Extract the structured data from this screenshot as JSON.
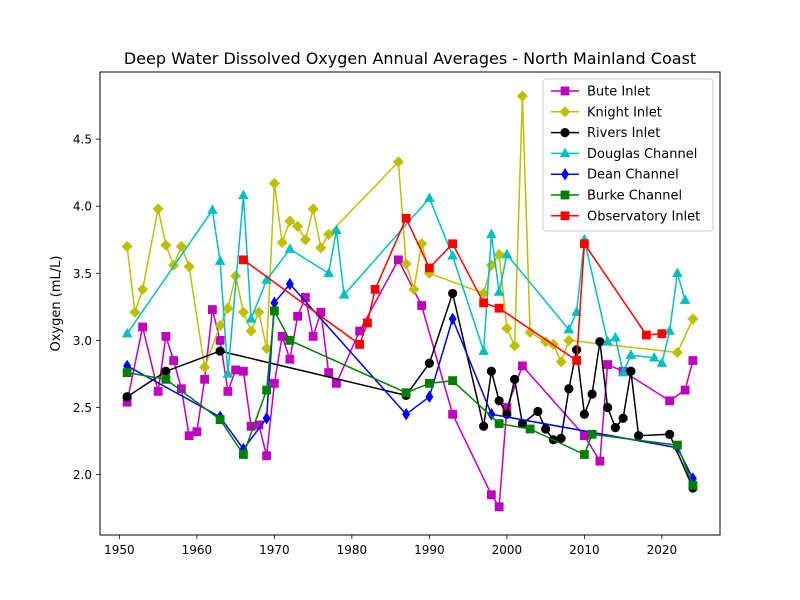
{
  "chart_data": {
    "type": "line",
    "title": "Deep Water Dissolved Oxygen Annual Averages - North Mainland Coast",
    "xlabel": "",
    "ylabel": "Oxygen (mL/L)",
    "xlim": [
      1947.5,
      2027.5
    ],
    "ylim": [
      1.55,
      5.0
    ],
    "xticks": [
      1950,
      1960,
      1970,
      1980,
      1990,
      2000,
      2010,
      2020
    ],
    "yticks": [
      2.0,
      2.5,
      3.0,
      3.5,
      4.0,
      4.5
    ],
    "ytick_labels": [
      "2.0",
      "2.5",
      "3.0",
      "3.5",
      "4.0",
      "4.5"
    ],
    "grid": false,
    "legend_position": "top-right",
    "series": [
      {
        "name": "Bute Inlet",
        "color": "#bf00bf",
        "marker": "square",
        "x": [
          1951,
          1953,
          1955,
          1956,
          1957,
          1958,
          1959,
          1960,
          1961,
          1962,
          1963,
          1964,
          1965,
          1966,
          1967,
          1968,
          1969,
          1970,
          1971,
          1972,
          1973,
          1974,
          1975,
          1976,
          1977,
          1978,
          1981,
          1986,
          1989,
          1993,
          1998,
          1999,
          2000,
          2002,
          2010,
          2012,
          2013,
          2015,
          2021,
          2023,
          2024
        ],
        "y": [
          2.54,
          3.1,
          2.62,
          3.03,
          2.85,
          2.64,
          2.29,
          2.32,
          2.71,
          3.23,
          3.0,
          2.62,
          2.78,
          2.77,
          2.36,
          2.37,
          2.14,
          2.68,
          3.03,
          2.86,
          3.18,
          3.32,
          3.03,
          3.21,
          2.76,
          2.68,
          3.07,
          3.6,
          3.26,
          2.45,
          1.85,
          1.76,
          2.5,
          2.81,
          2.29,
          2.1,
          2.82,
          2.77,
          2.55,
          2.63,
          2.85
        ]
      },
      {
        "name": "Knight Inlet",
        "color": "#bfbf00",
        "marker": "diamond",
        "x": [
          1951,
          1952,
          1953,
          1955,
          1956,
          1957,
          1958,
          1959,
          1961,
          1963,
          1964,
          1965,
          1966,
          1967,
          1968,
          1969,
          1970,
          1971,
          1972,
          1973,
          1974,
          1975,
          1976,
          1977,
          1986,
          1987,
          1988,
          1989,
          1990,
          1997,
          1998,
          1999,
          2000,
          2001,
          2002,
          2003,
          2005,
          2006,
          2007,
          2008,
          2022,
          2024
        ],
        "y": [
          3.7,
          3.21,
          3.38,
          3.98,
          3.71,
          3.56,
          3.7,
          3.55,
          2.8,
          3.11,
          3.24,
          3.48,
          3.21,
          3.07,
          3.21,
          2.94,
          4.17,
          3.73,
          3.89,
          3.85,
          3.75,
          3.98,
          3.69,
          3.79,
          4.33,
          3.57,
          3.38,
          3.72,
          3.5,
          3.35,
          3.56,
          3.64,
          3.09,
          2.96,
          4.82,
          3.06,
          2.99,
          2.97,
          2.84,
          3.0,
          2.91,
          3.16
        ]
      },
      {
        "name": "Rivers Inlet",
        "color": "#000000",
        "marker": "circle",
        "x": [
          1951,
          1956,
          1963,
          1987,
          1990,
          1993,
          1997,
          1998,
          1999,
          2000,
          2001,
          2002,
          2004,
          2005,
          2006,
          2007,
          2008,
          2009,
          2010,
          2011,
          2012,
          2013,
          2014,
          2015,
          2016,
          2017,
          2021,
          2024
        ],
        "y": [
          2.58,
          2.77,
          2.92,
          2.59,
          2.83,
          3.35,
          2.36,
          2.77,
          2.55,
          2.45,
          2.71,
          2.38,
          2.47,
          2.34,
          2.26,
          2.27,
          2.64,
          2.93,
          2.45,
          2.6,
          2.99,
          2.5,
          2.35,
          2.42,
          2.77,
          2.29,
          2.3,
          1.9
        ]
      },
      {
        "name": "Douglas Channel",
        "color": "#00bfbf",
        "marker": "triangle",
        "x": [
          1951,
          1962,
          1963,
          1964,
          1966,
          1967,
          1969,
          1972,
          1977,
          1978,
          1979,
          1990,
          1993,
          1997,
          1998,
          1999,
          2000,
          2008,
          2009,
          2010,
          2013,
          2014,
          2015,
          2016,
          2019,
          2020,
          2021,
          2022,
          2023
        ],
        "y": [
          3.05,
          3.97,
          3.59,
          2.75,
          4.08,
          3.16,
          3.45,
          3.68,
          3.5,
          3.82,
          3.34,
          4.06,
          3.63,
          2.92,
          3.79,
          3.36,
          3.64,
          3.08,
          3.21,
          3.75,
          2.99,
          3.02,
          2.76,
          2.89,
          2.87,
          2.83,
          3.07,
          3.5,
          3.3
        ]
      },
      {
        "name": "Dean Channel",
        "color": "#0000ff",
        "marker": "thin-diamond",
        "x": [
          1951,
          1963,
          1966,
          1969,
          1970,
          1972,
          1987,
          1990,
          1993,
          1998,
          2022,
          2024
        ],
        "y": [
          2.81,
          2.43,
          2.19,
          2.42,
          3.28,
          3.42,
          2.45,
          2.58,
          3.16,
          2.45,
          2.2,
          1.97
        ]
      },
      {
        "name": "Burke Channel",
        "color": "#008000",
        "marker": "square",
        "x": [
          1951,
          1956,
          1963,
          1966,
          1969,
          1970,
          1972,
          1987,
          1990,
          1993,
          1999,
          2003,
          2010,
          2011,
          2022,
          2024
        ],
        "y": [
          2.76,
          2.71,
          2.41,
          2.15,
          2.63,
          3.22,
          3.0,
          2.61,
          2.68,
          2.7,
          2.38,
          2.34,
          2.15,
          2.3,
          2.22,
          1.92
        ]
      },
      {
        "name": "Observatory Inlet",
        "color": "#ff0000",
        "marker": "square",
        "x": [
          1966,
          1981,
          1982,
          1983,
          1987,
          1990,
          1993,
          1997,
          1999,
          2009,
          2010,
          2018,
          2020
        ],
        "y": [
          3.6,
          2.97,
          3.13,
          3.38,
          3.91,
          3.54,
          3.72,
          3.28,
          3.24,
          2.85,
          3.72,
          3.04,
          3.05
        ]
      }
    ]
  }
}
